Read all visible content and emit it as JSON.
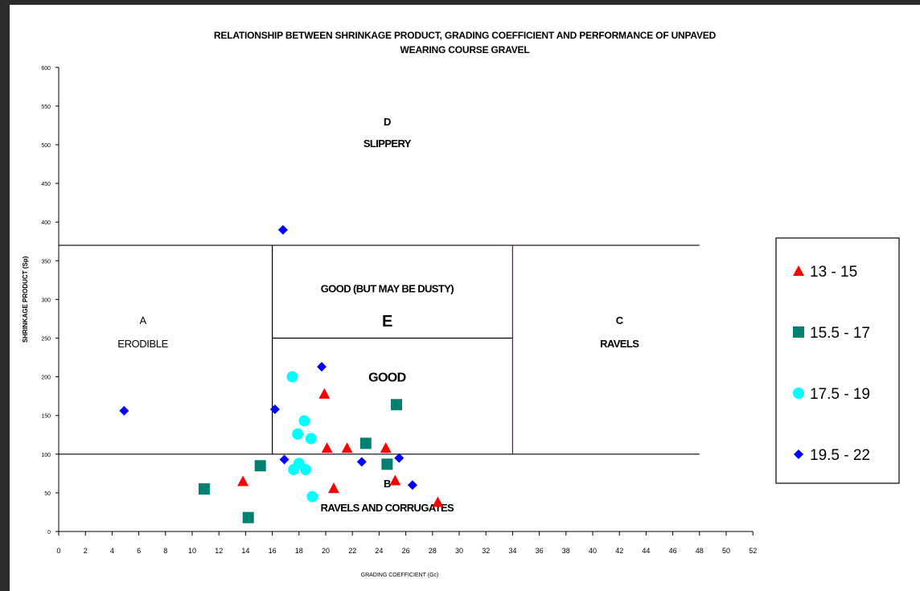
{
  "chart_data": {
    "type": "scatter",
    "title": [
      "RELATIONSHIP BETWEEN SHRINKAGE PRODUCT, GRADING COEFFICIENT AND PERFORMANCE OF UNPAVED",
      "WEARING COURSE GRAVEL"
    ],
    "xlabel": "GRADING COEFFICIENT (Gc)",
    "ylabel": "SHRINKAGE PRODUCT (Sp)",
    "xlim": [
      0,
      52
    ],
    "ylim": [
      0,
      600
    ],
    "xticks": [
      0,
      2,
      4,
      6,
      8,
      10,
      12,
      14,
      16,
      18,
      20,
      22,
      24,
      26,
      28,
      30,
      32,
      34,
      36,
      38,
      40,
      42,
      44,
      46,
      48,
      50,
      52
    ],
    "yticks": [
      0,
      50,
      100,
      150,
      200,
      250,
      300,
      350,
      400,
      450,
      500,
      550,
      600
    ],
    "grid": false,
    "legend_position": "right",
    "series": [
      {
        "name": "13 - 15",
        "color": "#ff0000",
        "marker": "triangle",
        "points": [
          [
            13.8,
            65
          ],
          [
            19.9,
            178
          ],
          [
            20.1,
            108
          ],
          [
            20.6,
            56
          ],
          [
            21.6,
            108
          ],
          [
            24.5,
            108
          ],
          [
            25.2,
            66
          ],
          [
            28.4,
            38
          ]
        ]
      },
      {
        "name": "15.5 - 17",
        "color": "#008070",
        "marker": "square",
        "points": [
          [
            10.9,
            55
          ],
          [
            14.2,
            18
          ],
          [
            15.1,
            85
          ],
          [
            23.0,
            114
          ],
          [
            24.6,
            87
          ],
          [
            25.3,
            164
          ]
        ]
      },
      {
        "name": "17.5 - 19",
        "color": "#00ffff",
        "marker": "circle",
        "points": [
          [
            17.5,
            200
          ],
          [
            17.6,
            80
          ],
          [
            17.9,
            126
          ],
          [
            18.0,
            88
          ],
          [
            18.4,
            143
          ],
          [
            18.5,
            80
          ],
          [
            18.9,
            120
          ],
          [
            19.0,
            45
          ]
        ]
      },
      {
        "name": "19.5 - 22",
        "color": "#0000ff",
        "marker": "diamond",
        "points": [
          [
            4.9,
            156
          ],
          [
            16.2,
            158
          ],
          [
            16.8,
            390
          ],
          [
            16.9,
            93
          ],
          [
            19.7,
            213
          ],
          [
            22.7,
            90
          ],
          [
            25.5,
            95
          ],
          [
            26.5,
            60
          ]
        ]
      }
    ],
    "region_lines": [
      {
        "x1": 0,
        "y1": 370,
        "x2": 48,
        "y2": 370,
        "color": "#000000"
      },
      {
        "x1": 0,
        "y1": 100,
        "x2": 48,
        "y2": 100,
        "color": "#000000"
      },
      {
        "x1": 16,
        "y1": 100,
        "x2": 16,
        "y2": 370,
        "color": "#000000"
      },
      {
        "x1": 16,
        "y1": 250,
        "x2": 34,
        "y2": 250,
        "color": "#000000"
      },
      {
        "x1": 34,
        "y1": 100,
        "x2": 34,
        "y2": 370,
        "color": "#800080"
      }
    ],
    "annotations": [
      {
        "text": "D",
        "x": 24.6,
        "y": 525,
        "style": "bold"
      },
      {
        "text": "SLIPPERY",
        "x": 24.6,
        "y": 497,
        "style": "bold"
      },
      {
        "text": "GOOD (BUT MAY BE DUSTY)",
        "x": 24.6,
        "y": 309,
        "style": "bold"
      },
      {
        "text": "E",
        "x": 24.6,
        "y": 265,
        "style": "bold-large"
      },
      {
        "text": "GOOD",
        "x": 24.6,
        "y": 194,
        "style": "bold-medium"
      },
      {
        "text": "A",
        "x": 6.3,
        "y": 268,
        "style": "plain"
      },
      {
        "text": "ERODIBLE",
        "x": 6.3,
        "y": 238,
        "style": "plain"
      },
      {
        "text": "C",
        "x": 42,
        "y": 268,
        "style": "bold"
      },
      {
        "text": "RAVELS",
        "x": 42,
        "y": 238,
        "style": "bold"
      },
      {
        "text": "B",
        "x": 24.6,
        "y": 57,
        "style": "bold"
      },
      {
        "text": "RAVELS AND CORRUGATES",
        "x": 24.6,
        "y": 26,
        "style": "bold"
      }
    ]
  }
}
